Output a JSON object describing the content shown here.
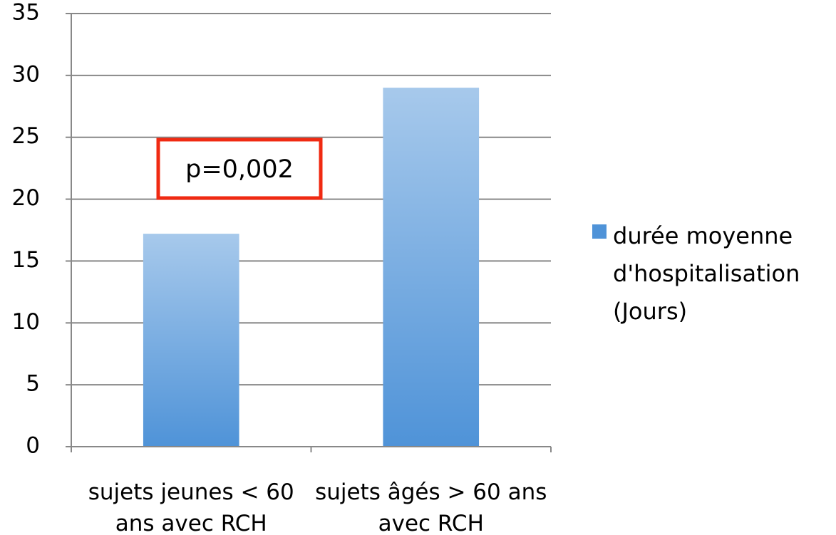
{
  "chart_data": {
    "type": "bar",
    "categories": [
      "sujets jeunes < 60 ans avec RCH",
      "sujets âgés > 60 ans avec RCH"
    ],
    "series": [
      {
        "name": "durée moyenne d'hospitalisation (Jours)",
        "color": "#4f93d8",
        "values": [
          17.2,
          29
        ]
      }
    ],
    "ylim": [
      0,
      35
    ],
    "yticks": [
      0,
      5,
      10,
      15,
      20,
      25,
      30,
      35
    ],
    "grid": true,
    "legend": "right",
    "annotation": "p=0,002"
  }
}
